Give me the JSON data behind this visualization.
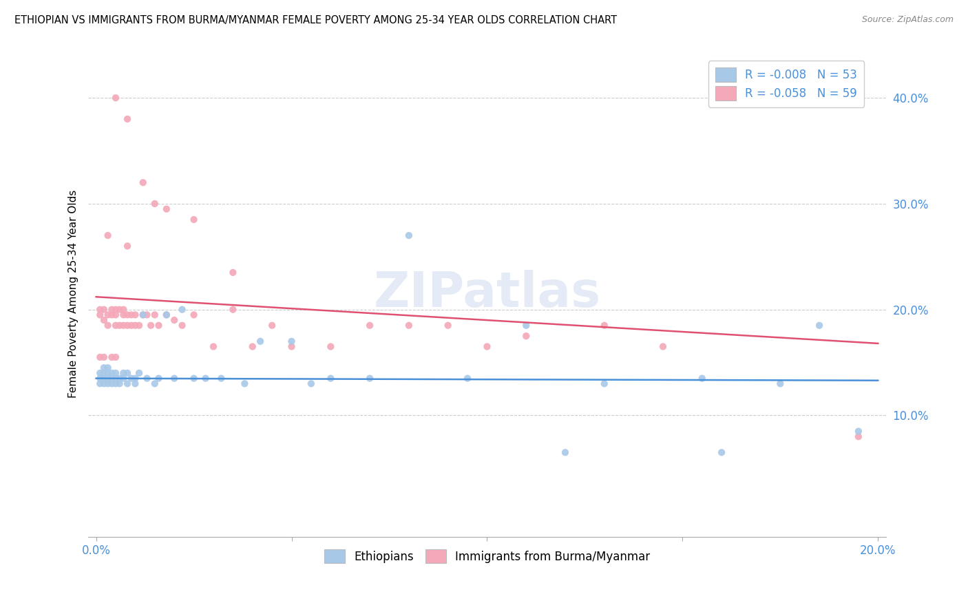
{
  "title": "ETHIOPIAN VS IMMIGRANTS FROM BURMA/MYANMAR FEMALE POVERTY AMONG 25-34 YEAR OLDS CORRELATION CHART",
  "source": "Source: ZipAtlas.com",
  "ylabel": "Female Poverty Among 25-34 Year Olds",
  "ytick_vals": [
    0.1,
    0.2,
    0.3,
    0.4
  ],
  "ytick_labels": [
    "10.0%",
    "20.0%",
    "30.0%",
    "40.0%"
  ],
  "xlim": [
    0.0,
    0.2
  ],
  "ylim": [
    -0.015,
    0.445
  ],
  "legend1_label": "R = -0.008   N = 53",
  "legend2_label": "R = -0.058   N = 59",
  "series1_color": "#a8c8e8",
  "series2_color": "#f4a8b8",
  "trendline1_color": "#4a90d9",
  "trendline2_color": "#e05070",
  "watermark": "ZIPatlas",
  "bottom_legend1": "Ethiopians",
  "bottom_legend2": "Immigrants from Burma/Myanmar",
  "eth_x": [
    0.001,
    0.001,
    0.001,
    0.002,
    0.002,
    0.002,
    0.002,
    0.003,
    0.003,
    0.003,
    0.003,
    0.004,
    0.004,
    0.004,
    0.005,
    0.005,
    0.005,
    0.006,
    0.006,
    0.007,
    0.007,
    0.008,
    0.008,
    0.009,
    0.01,
    0.01,
    0.011,
    0.012,
    0.013,
    0.015,
    0.016,
    0.018,
    0.02,
    0.022,
    0.025,
    0.028,
    0.032,
    0.038,
    0.042,
    0.05,
    0.055,
    0.06,
    0.07,
    0.08,
    0.095,
    0.11,
    0.13,
    0.155,
    0.175,
    0.185,
    0.12,
    0.16,
    0.195
  ],
  "eth_y": [
    0.13,
    0.135,
    0.14,
    0.13,
    0.135,
    0.14,
    0.145,
    0.13,
    0.135,
    0.14,
    0.145,
    0.13,
    0.14,
    0.135,
    0.13,
    0.14,
    0.135,
    0.13,
    0.135,
    0.14,
    0.135,
    0.13,
    0.14,
    0.135,
    0.13,
    0.135,
    0.14,
    0.195,
    0.135,
    0.13,
    0.135,
    0.195,
    0.135,
    0.2,
    0.135,
    0.135,
    0.135,
    0.13,
    0.17,
    0.17,
    0.13,
    0.135,
    0.135,
    0.27,
    0.135,
    0.185,
    0.13,
    0.135,
    0.13,
    0.185,
    0.065,
    0.065,
    0.085
  ],
  "burma_x": [
    0.001,
    0.001,
    0.001,
    0.002,
    0.002,
    0.002,
    0.003,
    0.003,
    0.003,
    0.004,
    0.004,
    0.004,
    0.005,
    0.005,
    0.005,
    0.005,
    0.006,
    0.006,
    0.007,
    0.007,
    0.007,
    0.008,
    0.008,
    0.009,
    0.009,
    0.01,
    0.01,
    0.011,
    0.012,
    0.013,
    0.014,
    0.015,
    0.016,
    0.018,
    0.02,
    0.022,
    0.025,
    0.03,
    0.035,
    0.04,
    0.045,
    0.05,
    0.06,
    0.07,
    0.08,
    0.09,
    0.1,
    0.11,
    0.13,
    0.145,
    0.005,
    0.008,
    0.012,
    0.018,
    0.025,
    0.035,
    0.195,
    0.008,
    0.015
  ],
  "burma_y": [
    0.195,
    0.2,
    0.155,
    0.19,
    0.2,
    0.155,
    0.27,
    0.185,
    0.195,
    0.195,
    0.2,
    0.155,
    0.195,
    0.2,
    0.185,
    0.155,
    0.185,
    0.2,
    0.195,
    0.2,
    0.185,
    0.195,
    0.185,
    0.195,
    0.185,
    0.185,
    0.195,
    0.185,
    0.195,
    0.195,
    0.185,
    0.195,
    0.185,
    0.195,
    0.19,
    0.185,
    0.195,
    0.165,
    0.2,
    0.165,
    0.185,
    0.165,
    0.165,
    0.185,
    0.185,
    0.185,
    0.165,
    0.175,
    0.185,
    0.165,
    0.4,
    0.38,
    0.32,
    0.295,
    0.285,
    0.235,
    0.08,
    0.26,
    0.3
  ],
  "eth_trend_x": [
    0.0,
    0.2
  ],
  "eth_trend_y": [
    0.135,
    0.133
  ],
  "burma_trend_x": [
    0.0,
    0.2
  ],
  "burma_trend_y": [
    0.212,
    0.168
  ]
}
